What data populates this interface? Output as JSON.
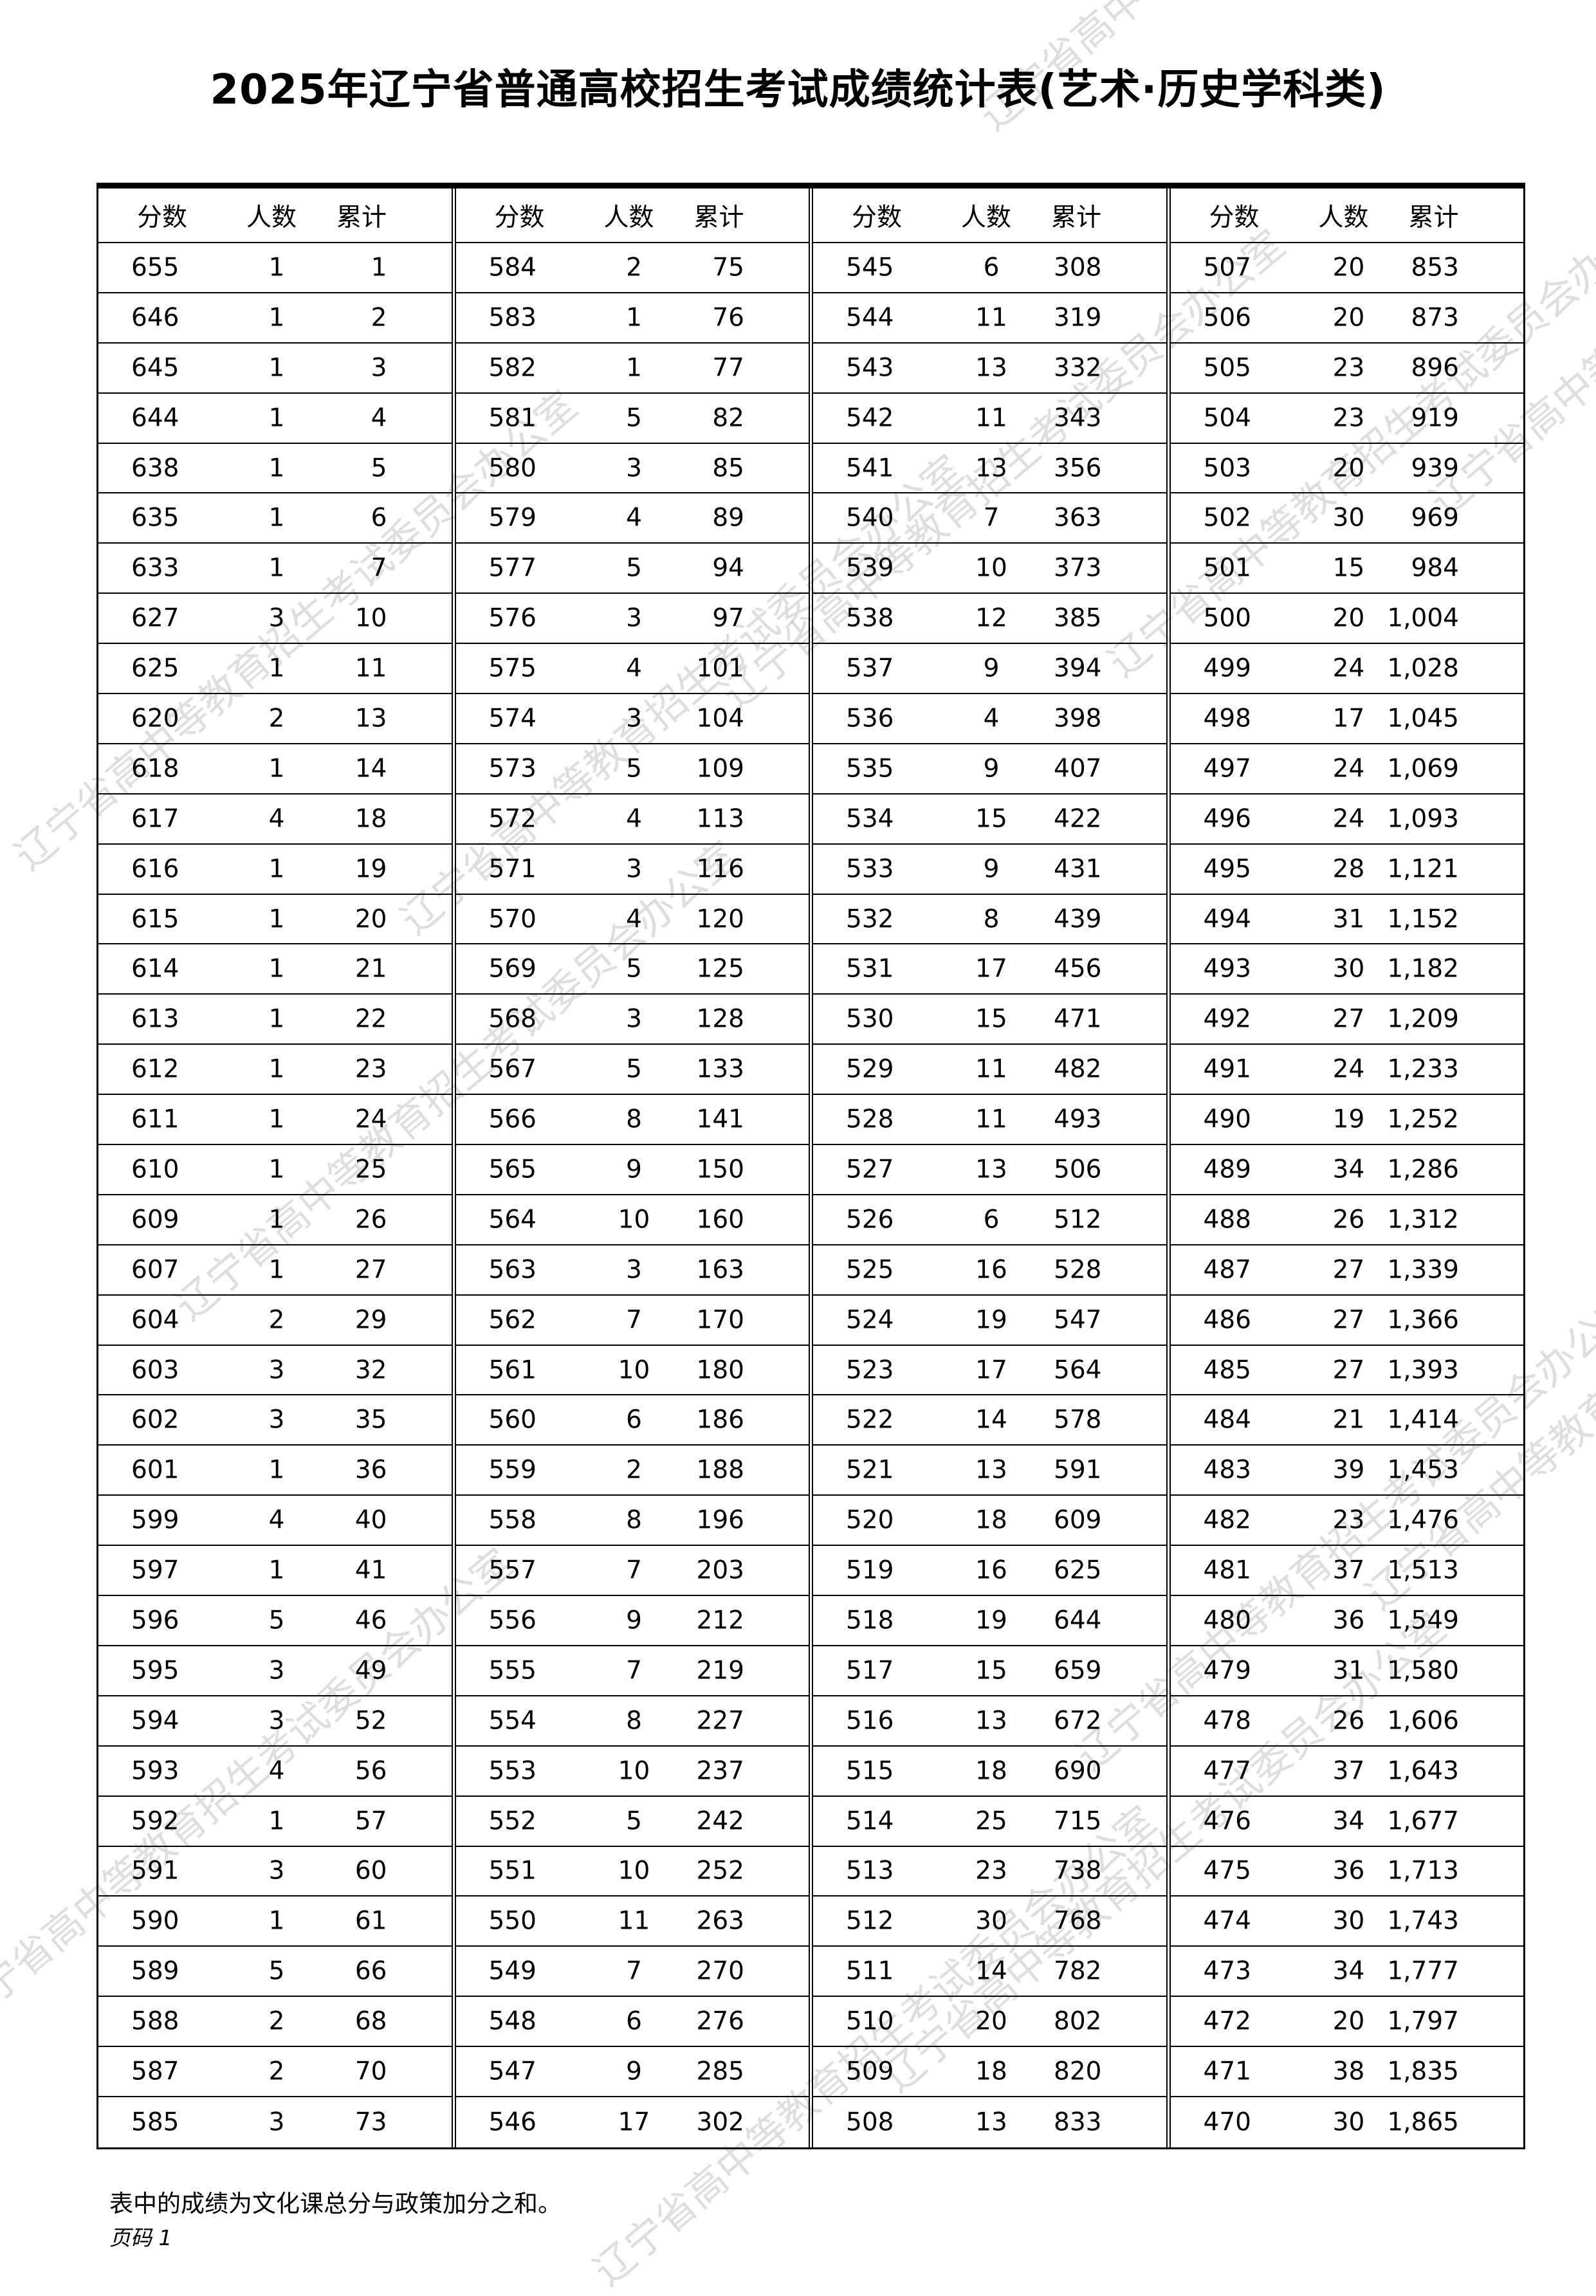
{
  "title": "2025年辽宁省普通高校招生考试成绩统计表(艺术·历史学科类)",
  "headers": [
    "分数",
    "人数",
    "累计"
  ],
  "columns": [
    {
      "rows": [
        [
          "655",
          "1",
          "1"
        ],
        [
          "646",
          "1",
          "2"
        ],
        [
          "645",
          "1",
          "3"
        ],
        [
          "644",
          "1",
          "4"
        ],
        [
          "638",
          "1",
          "5"
        ],
        [
          "635",
          "1",
          "6"
        ],
        [
          "633",
          "1",
          "7"
        ],
        [
          "627",
          "3",
          "10"
        ],
        [
          "625",
          "1",
          "11"
        ],
        [
          "620",
          "2",
          "13"
        ],
        [
          "618",
          "1",
          "14"
        ],
        [
          "617",
          "4",
          "18"
        ],
        [
          "616",
          "1",
          "19"
        ],
        [
          "615",
          "1",
          "20"
        ],
        [
          "614",
          "1",
          "21"
        ],
        [
          "613",
          "1",
          "22"
        ],
        [
          "612",
          "1",
          "23"
        ],
        [
          "611",
          "1",
          "24"
        ],
        [
          "610",
          "1",
          "25"
        ],
        [
          "609",
          "1",
          "26"
        ],
        [
          "607",
          "1",
          "27"
        ],
        [
          "604",
          "2",
          "29"
        ],
        [
          "603",
          "3",
          "32"
        ],
        [
          "602",
          "3",
          "35"
        ],
        [
          "601",
          "1",
          "36"
        ],
        [
          "599",
          "4",
          "40"
        ],
        [
          "597",
          "1",
          "41"
        ],
        [
          "596",
          "5",
          "46"
        ],
        [
          "595",
          "3",
          "49"
        ],
        [
          "594",
          "3",
          "52"
        ],
        [
          "593",
          "4",
          "56"
        ],
        [
          "592",
          "1",
          "57"
        ],
        [
          "591",
          "3",
          "60"
        ],
        [
          "590",
          "1",
          "61"
        ],
        [
          "589",
          "5",
          "66"
        ],
        [
          "588",
          "2",
          "68"
        ],
        [
          "587",
          "2",
          "70"
        ],
        [
          "585",
          "3",
          "73"
        ]
      ]
    },
    {
      "rows": [
        [
          "584",
          "2",
          "75"
        ],
        [
          "583",
          "1",
          "76"
        ],
        [
          "582",
          "1",
          "77"
        ],
        [
          "581",
          "5",
          "82"
        ],
        [
          "580",
          "3",
          "85"
        ],
        [
          "579",
          "4",
          "89"
        ],
        [
          "577",
          "5",
          "94"
        ],
        [
          "576",
          "3",
          "97"
        ],
        [
          "575",
          "4",
          "101"
        ],
        [
          "574",
          "3",
          "104"
        ],
        [
          "573",
          "5",
          "109"
        ],
        [
          "572",
          "4",
          "113"
        ],
        [
          "571",
          "3",
          "116"
        ],
        [
          "570",
          "4",
          "120"
        ],
        [
          "569",
          "5",
          "125"
        ],
        [
          "568",
          "3",
          "128"
        ],
        [
          "567",
          "5",
          "133"
        ],
        [
          "566",
          "8",
          "141"
        ],
        [
          "565",
          "9",
          "150"
        ],
        [
          "564",
          "10",
          "160"
        ],
        [
          "563",
          "3",
          "163"
        ],
        [
          "562",
          "7",
          "170"
        ],
        [
          "561",
          "10",
          "180"
        ],
        [
          "560",
          "6",
          "186"
        ],
        [
          "559",
          "2",
          "188"
        ],
        [
          "558",
          "8",
          "196"
        ],
        [
          "557",
          "7",
          "203"
        ],
        [
          "556",
          "9",
          "212"
        ],
        [
          "555",
          "7",
          "219"
        ],
        [
          "554",
          "8",
          "227"
        ],
        [
          "553",
          "10",
          "237"
        ],
        [
          "552",
          "5",
          "242"
        ],
        [
          "551",
          "10",
          "252"
        ],
        [
          "550",
          "11",
          "263"
        ],
        [
          "549",
          "7",
          "270"
        ],
        [
          "548",
          "6",
          "276"
        ],
        [
          "547",
          "9",
          "285"
        ],
        [
          "546",
          "17",
          "302"
        ]
      ]
    },
    {
      "rows": [
        [
          "545",
          "6",
          "308"
        ],
        [
          "544",
          "11",
          "319"
        ],
        [
          "543",
          "13",
          "332"
        ],
        [
          "542",
          "11",
          "343"
        ],
        [
          "541",
          "13",
          "356"
        ],
        [
          "540",
          "7",
          "363"
        ],
        [
          "539",
          "10",
          "373"
        ],
        [
          "538",
          "12",
          "385"
        ],
        [
          "537",
          "9",
          "394"
        ],
        [
          "536",
          "4",
          "398"
        ],
        [
          "535",
          "9",
          "407"
        ],
        [
          "534",
          "15",
          "422"
        ],
        [
          "533",
          "9",
          "431"
        ],
        [
          "532",
          "8",
          "439"
        ],
        [
          "531",
          "17",
          "456"
        ],
        [
          "530",
          "15",
          "471"
        ],
        [
          "529",
          "11",
          "482"
        ],
        [
          "528",
          "11",
          "493"
        ],
        [
          "527",
          "13",
          "506"
        ],
        [
          "526",
          "6",
          "512"
        ],
        [
          "525",
          "16",
          "528"
        ],
        [
          "524",
          "19",
          "547"
        ],
        [
          "523",
          "17",
          "564"
        ],
        [
          "522",
          "14",
          "578"
        ],
        [
          "521",
          "13",
          "591"
        ],
        [
          "520",
          "18",
          "609"
        ],
        [
          "519",
          "16",
          "625"
        ],
        [
          "518",
          "19",
          "644"
        ],
        [
          "517",
          "15",
          "659"
        ],
        [
          "516",
          "13",
          "672"
        ],
        [
          "515",
          "18",
          "690"
        ],
        [
          "514",
          "25",
          "715"
        ],
        [
          "513",
          "23",
          "738"
        ],
        [
          "512",
          "30",
          "768"
        ],
        [
          "511",
          "14",
          "782"
        ],
        [
          "510",
          "20",
          "802"
        ],
        [
          "509",
          "18",
          "820"
        ],
        [
          "508",
          "13",
          "833"
        ]
      ]
    },
    {
      "rows": [
        [
          "507",
          "20",
          "853"
        ],
        [
          "506",
          "20",
          "873"
        ],
        [
          "505",
          "23",
          "896"
        ],
        [
          "504",
          "23",
          "919"
        ],
        [
          "503",
          "20",
          "939"
        ],
        [
          "502",
          "30",
          "969"
        ],
        [
          "501",
          "15",
          "984"
        ],
        [
          "500",
          "20",
          "1,004"
        ],
        [
          "499",
          "24",
          "1,028"
        ],
        [
          "498",
          "17",
          "1,045"
        ],
        [
          "497",
          "24",
          "1,069"
        ],
        [
          "496",
          "24",
          "1,093"
        ],
        [
          "495",
          "28",
          "1,121"
        ],
        [
          "494",
          "31",
          "1,152"
        ],
        [
          "493",
          "30",
          "1,182"
        ],
        [
          "492",
          "27",
          "1,209"
        ],
        [
          "491",
          "24",
          "1,233"
        ],
        [
          "490",
          "19",
          "1,252"
        ],
        [
          "489",
          "34",
          "1,286"
        ],
        [
          "488",
          "26",
          "1,312"
        ],
        [
          "487",
          "27",
          "1,339"
        ],
        [
          "486",
          "27",
          "1,366"
        ],
        [
          "485",
          "27",
          "1,393"
        ],
        [
          "484",
          "21",
          "1,414"
        ],
        [
          "483",
          "39",
          "1,453"
        ],
        [
          "482",
          "23",
          "1,476"
        ],
        [
          "481",
          "37",
          "1,513"
        ],
        [
          "480",
          "36",
          "1,549"
        ],
        [
          "479",
          "31",
          "1,580"
        ],
        [
          "478",
          "26",
          "1,606"
        ],
        [
          "477",
          "37",
          "1,643"
        ],
        [
          "476",
          "34",
          "1,677"
        ],
        [
          "475",
          "36",
          "1,713"
        ],
        [
          "474",
          "30",
          "1,743"
        ],
        [
          "473",
          "34",
          "1,777"
        ],
        [
          "472",
          "20",
          "1,797"
        ],
        [
          "471",
          "38",
          "1,835"
        ],
        [
          "470",
          "30",
          "1,865"
        ]
      ]
    }
  ],
  "footer": {
    "note": "表中的成绩为文化课总分与政策加分之和。",
    "page": "页码 1"
  },
  "watermark": "辽宁省高中等教育招生考试委员会办公室"
}
